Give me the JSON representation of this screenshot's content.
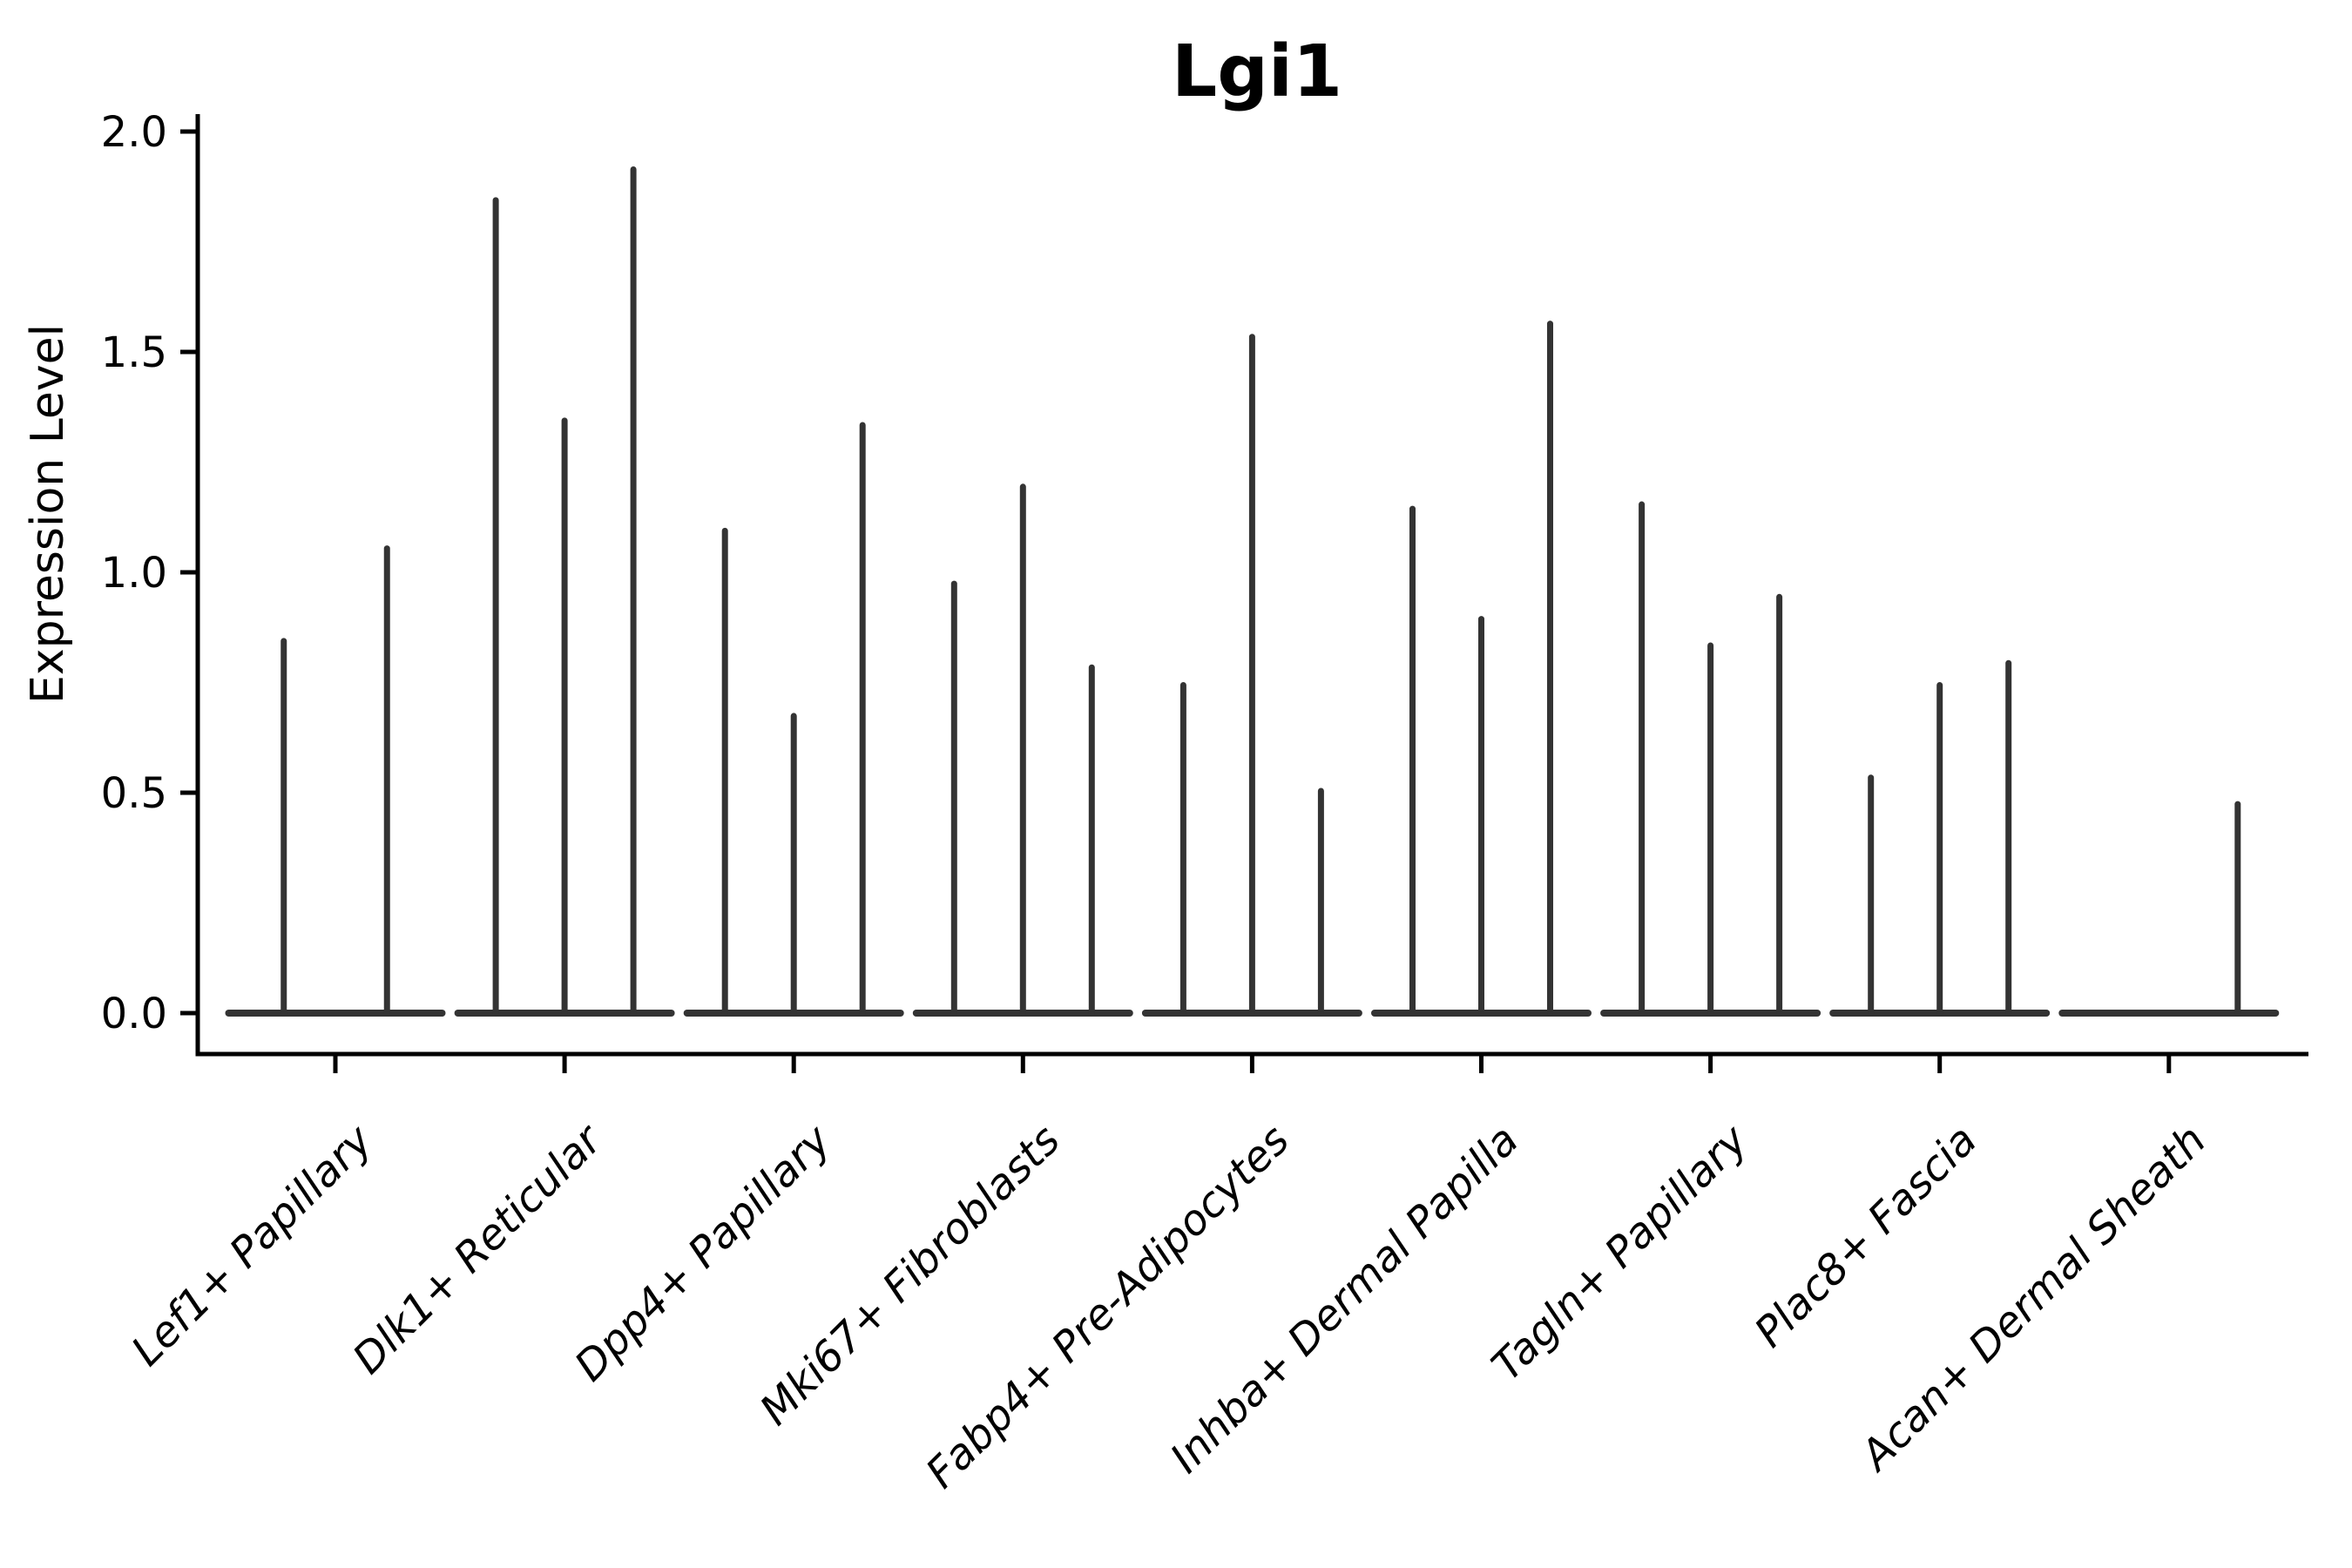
{
  "figure": {
    "title": "Lgi1",
    "ylabel": "Expression Level"
  },
  "colors": {
    "background": "#ffffff",
    "axis": "#000000",
    "text": "#000000",
    "violin": "#333333"
  },
  "chart_data": {
    "type": "violin",
    "title": "Lgi1",
    "xlabel": "",
    "ylabel": "Expression Level",
    "ylim": [
      -0.09,
      2.04
    ],
    "ytick_values": [
      0.0,
      0.5,
      1.0,
      1.5,
      2.0
    ],
    "ytick_labels": [
      "0.0",
      "0.5",
      "1.0",
      "1.5",
      "2.0"
    ],
    "grid": false,
    "legend": "none",
    "x_label_rotation_deg": 45,
    "x_labels_italic": true,
    "categories": [
      "Lef1+ Papillary",
      "Dlk1+ Reticular",
      "Dpp4+ Papillary",
      "Mki67+ Fibroblasts",
      "Fabp4+ Pre-Adipocytes",
      "Inhba+ Dermal Papilla",
      "Tagln+ Papillary",
      "Plac8+ Fascia",
      "Acan+ Dermal Sheath"
    ],
    "groups": [
      {
        "category": "Lef1+ Papillary",
        "violin_max_values": [
          0.85,
          1.06
        ]
      },
      {
        "category": "Dlk1+ Reticular",
        "violin_max_values": [
          1.85,
          1.35,
          1.92
        ]
      },
      {
        "category": "Dpp4+ Papillary",
        "violin_max_values": [
          1.1,
          0.68,
          1.34
        ]
      },
      {
        "category": "Mki67+ Fibroblasts",
        "violin_max_values": [
          0.98,
          1.2,
          0.79
        ]
      },
      {
        "category": "Fabp4+ Pre-Adipocytes",
        "violin_max_values": [
          0.75,
          1.54,
          0.51
        ]
      },
      {
        "category": "Inhba+ Dermal Papilla",
        "violin_max_values": [
          1.15,
          0.9,
          1.57
        ]
      },
      {
        "category": "Tagln+ Papillary",
        "violin_max_values": [
          1.16,
          0.84,
          0.95
        ]
      },
      {
        "category": "Plac8+ Fascia",
        "violin_max_values": [
          0.54,
          0.75,
          0.8
        ]
      },
      {
        "category": "Acan+ Dermal Sheath",
        "violin_max_values": [
          0.0,
          0.0,
          0.48
        ]
      }
    ],
    "description": "Violin plot of Lgi1 expression; all distributions collapsed at 0 with thin spikes to the maximum expression value per violin."
  }
}
